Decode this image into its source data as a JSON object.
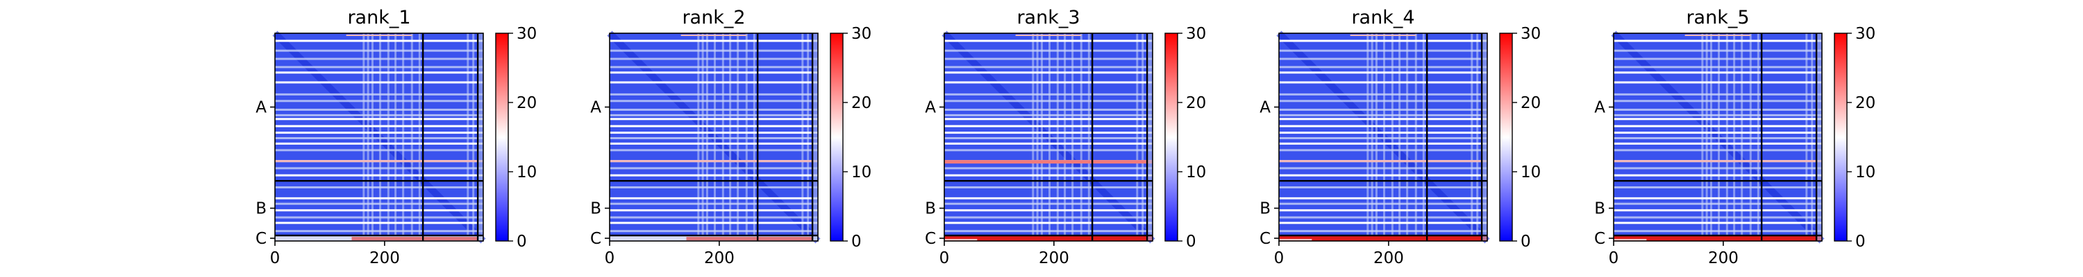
{
  "chart_data": [
    {
      "type": "heatmap",
      "title": "rank_1",
      "x_ticks": [
        0,
        200
      ],
      "y_chain_labels": [
        "A",
        "B",
        "C"
      ],
      "chain_boundaries": [
        270,
        370,
        380
      ],
      "colorbar_ticks": [
        0,
        10,
        20,
        30
      ],
      "vmin": 0,
      "vmax": 30,
      "colormap": [
        "#0000ff",
        "#ffffff",
        "#ff0000"
      ],
      "band_colors": {
        "default": "#3a52ee",
        "light": "#c9d3f8",
        "white": "#ffffff",
        "pink": "#f3b8b8"
      },
      "strong_c_band": false,
      "strong_ab_band": false
    },
    {
      "type": "heatmap",
      "title": "rank_2",
      "x_ticks": [
        0,
        200
      ],
      "y_chain_labels": [
        "A",
        "B",
        "C"
      ],
      "chain_boundaries": [
        270,
        370,
        380
      ],
      "colorbar_ticks": [
        0,
        10,
        20,
        30
      ],
      "vmin": 0,
      "vmax": 30,
      "colormap": [
        "#0000ff",
        "#ffffff",
        "#ff0000"
      ],
      "band_colors": {
        "default": "#3a52ee",
        "light": "#c9d3f8",
        "white": "#ffffff",
        "pink": "#f3b8b8"
      },
      "strong_c_band": false,
      "strong_ab_band": false
    },
    {
      "type": "heatmap",
      "title": "rank_3",
      "x_ticks": [
        0,
        200
      ],
      "y_chain_labels": [
        "A",
        "B",
        "C"
      ],
      "chain_boundaries": [
        270,
        370,
        380
      ],
      "colorbar_ticks": [
        0,
        10,
        20,
        30
      ],
      "vmin": 0,
      "vmax": 30,
      "colormap": [
        "#0000ff",
        "#ffffff",
        "#ff0000"
      ],
      "band_colors": {
        "default": "#3a52ee",
        "light": "#c9d3f8",
        "white": "#ffffff",
        "pink": "#f3b8b8"
      },
      "strong_c_band": true,
      "strong_ab_band": true
    },
    {
      "type": "heatmap",
      "title": "rank_4",
      "x_ticks": [
        0,
        200
      ],
      "y_chain_labels": [
        "A",
        "B",
        "C"
      ],
      "chain_boundaries": [
        270,
        370,
        380
      ],
      "colorbar_ticks": [
        0,
        10,
        20,
        30
      ],
      "vmin": 0,
      "vmax": 30,
      "colormap": [
        "#0000ff",
        "#ffffff",
        "#ff0000"
      ],
      "band_colors": {
        "default": "#3a52ee",
        "light": "#c9d3f8",
        "white": "#ffffff",
        "pink": "#f3b8b8"
      },
      "strong_c_band": true,
      "strong_ab_band": false
    },
    {
      "type": "heatmap",
      "title": "rank_5",
      "x_ticks": [
        0,
        200
      ],
      "y_chain_labels": [
        "A",
        "B",
        "C"
      ],
      "chain_boundaries": [
        270,
        370,
        380
      ],
      "colorbar_ticks": [
        0,
        10,
        20,
        30
      ],
      "vmin": 0,
      "vmax": 30,
      "colormap": [
        "#0000ff",
        "#ffffff",
        "#ff0000"
      ],
      "band_colors": {
        "default": "#3a52ee",
        "light": "#c9d3f8",
        "white": "#ffffff",
        "pink": "#f3b8b8"
      },
      "strong_c_band": true,
      "strong_ab_band": false
    }
  ]
}
